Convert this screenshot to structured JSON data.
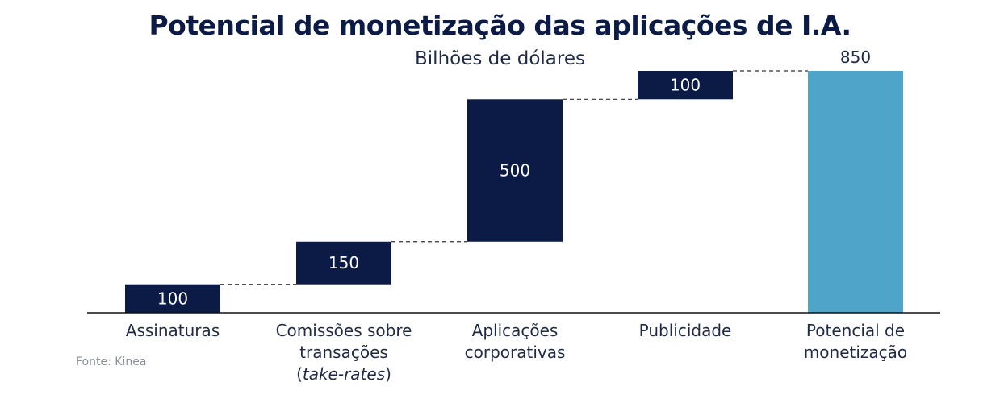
{
  "chart_data": {
    "type": "bar",
    "title": "Potencial de monetização das aplicações de I.A.",
    "subtitle": "Bilhões de dólares",
    "source": "Fonte: Kinea",
    "categories": [
      {
        "lines": [
          [
            {
              "t": "Assinaturas"
            }
          ]
        ]
      },
      {
        "lines": [
          [
            {
              "t": "Comissões sobre"
            }
          ],
          [
            {
              "t": "transações"
            }
          ],
          [
            {
              "t": "("
            },
            {
              "t": "take-rates",
              "italic": true
            },
            {
              "t": ")"
            }
          ]
        ]
      },
      {
        "lines": [
          [
            {
              "t": "Aplicações"
            }
          ],
          [
            {
              "t": "corporativas"
            }
          ]
        ]
      },
      {
        "lines": [
          [
            {
              "t": "Publicidade"
            }
          ]
        ]
      },
      {
        "lines": [
          [
            {
              "t": "Potencial de"
            }
          ],
          [
            {
              "t": "monetização"
            }
          ]
        ]
      }
    ],
    "bars": [
      {
        "start": 0,
        "end": 100,
        "value": "100",
        "kind": "increment"
      },
      {
        "start": 100,
        "end": 250,
        "value": "150",
        "kind": "increment"
      },
      {
        "start": 250,
        "end": 750,
        "value": "500",
        "kind": "increment"
      },
      {
        "start": 750,
        "end": 850,
        "value": "100",
        "kind": "increment"
      },
      {
        "start": 0,
        "end": 850,
        "value": "850",
        "kind": "total"
      }
    ],
    "colors": {
      "increment": "#0b1b45",
      "total": "#4ea4c9",
      "axis": "#111111",
      "connector": "#333333"
    },
    "ylim": [
      0,
      850
    ],
    "grid": false
  }
}
